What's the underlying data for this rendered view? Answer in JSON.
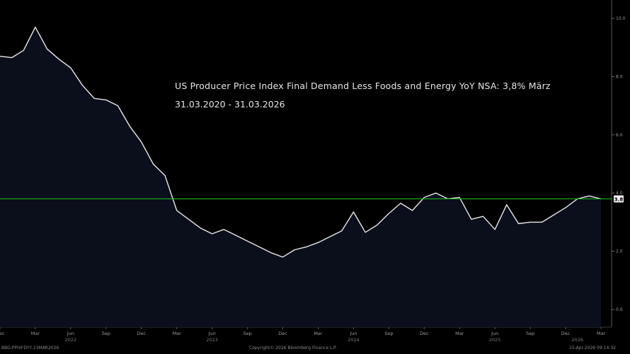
{
  "chart_data": {
    "type": "area",
    "title": "US Producer Price Index Final Demand Less Foods and Energy YoY NSA: 3,8% März",
    "subtitle": "31.03.2020 - 31.03.2026",
    "ylim": [
      -0.6,
      10.6
    ],
    "yticks": [
      0,
      2,
      4,
      6,
      8,
      10
    ],
    "ytick_labels": [
      "0.0",
      "2.0",
      "4.0",
      "6.0",
      "8.0",
      "10.0"
    ],
    "current_value": 3.8,
    "current_label": "3.8",
    "reference_line": 3.8,
    "x_tick_labels": [
      "Dec",
      "Mar",
      "Jun",
      "Sep",
      "Dec",
      "Mar",
      "Jun",
      "Sep",
      "Dec",
      "Mar",
      "Jun",
      "Sep",
      "Dec",
      "Mar",
      "Jun",
      "Sep",
      "Dec",
      "Mar"
    ],
    "x_year_labels": [
      {
        "label": "2022",
        "month": "2022-06"
      },
      {
        "label": "2023",
        "month": "2023-06"
      },
      {
        "label": "2024",
        "month": "2024-06"
      },
      {
        "label": "2025",
        "month": "2025-06"
      },
      {
        "label": "2026",
        "month": "2026-01"
      }
    ],
    "x": [
      "2021-12",
      "2022-01",
      "2022-02",
      "2022-03",
      "2022-04",
      "2022-05",
      "2022-06",
      "2022-07",
      "2022-08",
      "2022-09",
      "2022-10",
      "2022-11",
      "2022-12",
      "2023-01",
      "2023-02",
      "2023-03",
      "2023-04",
      "2023-05",
      "2023-06",
      "2023-07",
      "2023-08",
      "2023-09",
      "2023-10",
      "2023-11",
      "2023-12",
      "2024-01",
      "2024-02",
      "2024-03",
      "2024-04",
      "2024-05",
      "2024-06",
      "2024-07",
      "2024-08",
      "2024-09",
      "2024-10",
      "2024-11",
      "2024-12",
      "2025-01",
      "2025-02",
      "2025-03",
      "2025-04",
      "2025-05",
      "2025-06",
      "2025-07",
      "2025-08",
      "2025-09",
      "2025-10",
      "2025-11",
      "2025-12",
      "2026-01",
      "2026-02",
      "2026-03"
    ],
    "values": [
      8.7,
      8.65,
      8.9,
      9.7,
      8.95,
      8.6,
      8.3,
      7.7,
      7.25,
      7.2,
      7.0,
      6.3,
      5.75,
      5.0,
      4.6,
      3.4,
      3.1,
      2.8,
      2.6,
      2.75,
      2.55,
      2.35,
      2.15,
      1.95,
      1.8,
      2.05,
      2.15,
      2.3,
      2.5,
      2.7,
      3.35,
      2.65,
      2.9,
      3.3,
      3.65,
      3.4,
      3.85,
      4.0,
      3.8,
      3.85,
      3.1,
      3.2,
      2.75,
      3.6,
      2.95,
      3.0,
      3.0,
      3.25,
      3.5,
      3.8,
      3.9,
      3.8
    ]
  },
  "footer": {
    "left": "BBG:PPIXFDYY 23MAR2026",
    "center": "Copyright© 2026 Bloomberg Finance L.P.",
    "right": "15-Apr-2026 09:14:32"
  },
  "colors": {
    "background": "#000000",
    "plot_fill": "#0b0f1c",
    "line": "#e8e8e8",
    "reference_line": "#1fb31f",
    "label_box": "#f0f0f0"
  }
}
